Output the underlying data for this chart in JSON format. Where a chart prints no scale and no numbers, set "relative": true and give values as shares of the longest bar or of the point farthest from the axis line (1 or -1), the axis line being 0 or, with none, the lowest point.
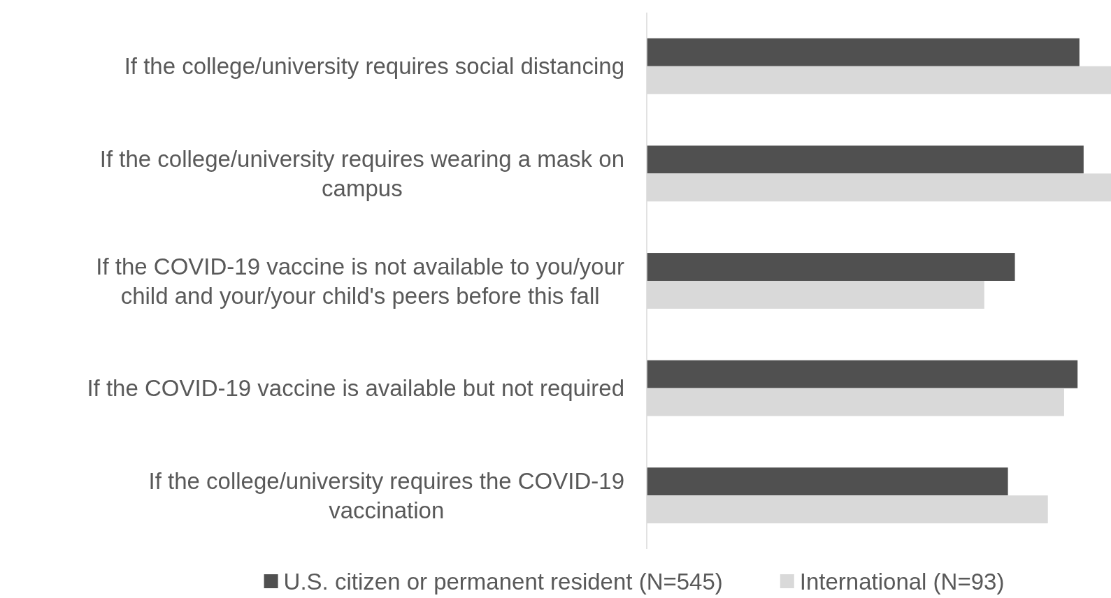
{
  "chart_data": {
    "type": "bar",
    "orientation": "horizontal",
    "relative": true,
    "legend": "bottom",
    "categories": [
      "If the college/university requires social distancing",
      "If the college/university requires wearing a mask on campus",
      "If the COVID-19 vaccine is not available to you/your child and your/your child's peers before this fall",
      "If the COVID-19 vaccine is available but not required",
      "If the college/university requires the COVID-19 vaccination"
    ],
    "series": [
      {
        "name": "U.S. citizen or permanent resident (N=545)",
        "color": "#505050",
        "values": [
          0.932,
          0.941,
          0.793,
          0.928,
          0.778
        ]
      },
      {
        "name": "International (N=93)",
        "color": "#d9d9d9",
        "values": [
          1,
          1,
          0.727,
          0.899,
          0.864
        ]
      }
    ]
  }
}
